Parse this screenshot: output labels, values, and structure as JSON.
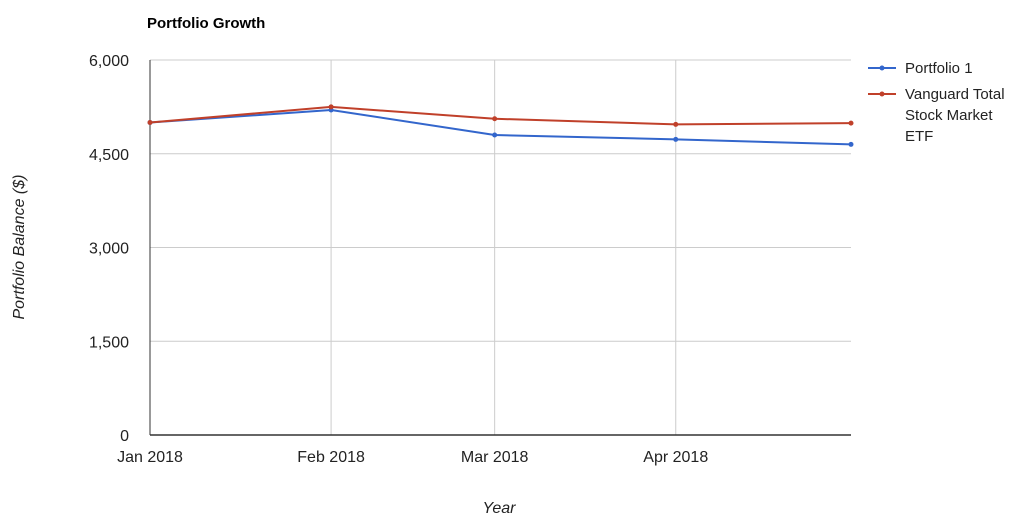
{
  "chart_data": {
    "type": "line",
    "title": "Portfolio Growth",
    "xlabel": "Year",
    "ylabel": "Portfolio Balance ($)",
    "x_tick_labels": [
      "Jan 2018",
      "Feb 2018",
      "Mar 2018",
      "Apr 2018"
    ],
    "y_tick_labels": [
      "0",
      "1,500",
      "3,000",
      "4,500",
      "6,000"
    ],
    "y_ticks": [
      0,
      1500,
      3000,
      4500,
      6000
    ],
    "ylim": [
      0,
      6000
    ],
    "x_dates": [
      "2018-01-01",
      "2018-02-01",
      "2018-03-01",
      "2018-04-01",
      "2018-05-01"
    ],
    "x_range": [
      "2018-01-01",
      "2018-05-01"
    ],
    "grid": true,
    "legend_position": "right",
    "series": [
      {
        "name": "Portfolio 1",
        "color": "#3366cc",
        "values": [
          5000,
          5200,
          4800,
          4730,
          4650
        ]
      },
      {
        "name": "Vanguard Total Stock Market ETF",
        "legend_lines": [
          "Vanguard Total",
          "Stock Market",
          "ETF"
        ],
        "color": "#c0402a",
        "values": [
          5000,
          5250,
          5060,
          4970,
          4990
        ]
      }
    ]
  }
}
